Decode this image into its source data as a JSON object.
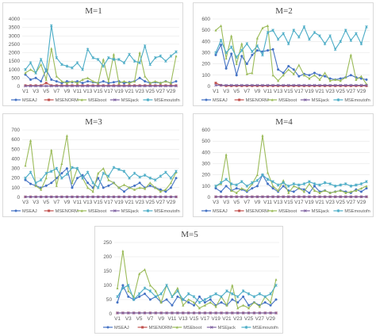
{
  "series_styles": [
    {
      "name": "MSEAJ",
      "color": "#4472c4",
      "marker": "circle"
    },
    {
      "name": "MSENORM",
      "color": "#c0504d",
      "marker": "square"
    },
    {
      "name": "MSEboot",
      "color": "#9bbb59",
      "marker": "triangle"
    },
    {
      "name": "MSEjack",
      "color": "#8064a2",
      "marker": "x"
    },
    {
      "name": "MSEmoutofn",
      "color": "#4bacc6",
      "marker": "star"
    }
  ],
  "chart_data": [
    {
      "type": "line",
      "title": "M=1",
      "ylim": [
        0,
        4000
      ],
      "yticks": [
        0,
        500,
        1000,
        1500,
        2000,
        2500,
        3000,
        3500,
        4000
      ],
      "x_tick_labels": [
        "V1",
        "V3",
        "V5",
        "V7",
        "V9",
        "V11",
        "V13",
        "V15",
        "V17",
        "V19",
        "V21",
        "V23",
        "V25",
        "V27",
        "V29"
      ],
      "series": [
        {
          "name": "MSEAJ",
          "values": [
            700,
            400,
            500,
            300,
            1000,
            400,
            300,
            200,
            300,
            250,
            300,
            200,
            300,
            250,
            200,
            300,
            200,
            250,
            300,
            200,
            250,
            300,
            500,
            300,
            200,
            250,
            200,
            300,
            200,
            300
          ]
        },
        {
          "name": "MSENORM",
          "values": [
            50,
            50,
            50,
            50,
            200,
            50,
            50,
            50,
            50,
            50,
            50,
            50,
            50,
            50,
            50,
            50,
            50,
            50,
            50,
            50,
            50,
            50,
            50,
            50,
            50,
            50,
            50,
            50,
            50,
            50
          ]
        },
        {
          "name": "MSEboot",
          "values": [
            800,
            1000,
            800,
            1300,
            400,
            2250,
            600,
            300,
            200,
            300,
            200,
            400,
            500,
            300,
            200,
            1600,
            300,
            1900,
            200,
            300,
            200,
            300,
            2000,
            600,
            200,
            300,
            200,
            300,
            200,
            1800
          ]
        },
        {
          "name": "MSEjack",
          "values": [
            20,
            20,
            20,
            20,
            20,
            20,
            20,
            20,
            20,
            20,
            20,
            20,
            20,
            20,
            20,
            20,
            20,
            20,
            20,
            20,
            20,
            20,
            20,
            20,
            20,
            20,
            20,
            20,
            20,
            20
          ]
        },
        {
          "name": "MSEmoutofn",
          "values": [
            1000,
            1400,
            800,
            1600,
            900,
            3600,
            1700,
            1300,
            1200,
            1100,
            1400,
            1000,
            2200,
            1700,
            1600,
            1200,
            1700,
            1600,
            1600,
            1400,
            1900,
            1500,
            1400,
            2400,
            1300,
            1700,
            1800,
            1500,
            1800,
            2050
          ]
        }
      ],
      "legend": "bottom"
    },
    {
      "type": "line",
      "title": "M=2",
      "ylim": [
        0,
        600
      ],
      "yticks": [
        0,
        100,
        200,
        300,
        400,
        500,
        600
      ],
      "x_tick_labels": [
        "V1",
        "V3",
        "V5",
        "V7",
        "V9",
        "V11",
        "V13",
        "V15",
        "V17",
        "V19",
        "V21",
        "V23",
        "V25",
        "V27",
        "V29"
      ],
      "series": [
        {
          "name": "MSEAJ",
          "values": [
            280,
            370,
            160,
            290,
            100,
            270,
            200,
            280,
            320,
            310,
            320,
            330,
            150,
            120,
            180,
            150,
            90,
            110,
            100,
            120,
            100,
            90,
            70,
            60,
            70,
            80,
            100,
            80,
            70,
            60
          ]
        },
        {
          "name": "MSENORM",
          "values": [
            30,
            10,
            5,
            5,
            5,
            5,
            5,
            5,
            5,
            5,
            5,
            5,
            5,
            5,
            5,
            5,
            5,
            5,
            5,
            5,
            5,
            5,
            5,
            5,
            5,
            5,
            5,
            5,
            5,
            5
          ]
        },
        {
          "name": "MSEboot",
          "values": [
            500,
            540,
            250,
            450,
            200,
            380,
            110,
            120,
            430,
            520,
            540,
            100,
            50,
            100,
            150,
            110,
            190,
            100,
            70,
            100,
            60,
            120,
            50,
            60,
            50,
            80,
            280,
            60,
            90,
            20
          ]
        },
        {
          "name": "MSEjack",
          "values": [
            10,
            10,
            10,
            10,
            10,
            10,
            10,
            10,
            10,
            10,
            10,
            10,
            10,
            10,
            10,
            10,
            10,
            10,
            10,
            10,
            10,
            10,
            10,
            10,
            10,
            10,
            10,
            10,
            10,
            10
          ]
        },
        {
          "name": "MSEmoutofn",
          "values": [
            300,
            410,
            300,
            350,
            260,
            320,
            380,
            310,
            360,
            280,
            480,
            500,
            420,
            470,
            380,
            500,
            440,
            530,
            420,
            480,
            450,
            380,
            450,
            330,
            400,
            500,
            410,
            470,
            380,
            530
          ]
        }
      ],
      "legend": "bottom"
    },
    {
      "type": "line",
      "title": "M=3",
      "ylim": [
        0,
        700
      ],
      "yticks": [
        0,
        100,
        200,
        300,
        400,
        500,
        600,
        700
      ],
      "x_tick_labels": [
        "V3",
        "V3",
        "V5",
        "V7",
        "V9",
        "V11",
        "V13",
        "V15",
        "V17",
        "V19",
        "V21",
        "V23",
        "V25",
        "V27",
        "V29"
      ],
      "series": [
        {
          "name": "MSEAJ",
          "values": [
            180,
            140,
            120,
            100,
            120,
            150,
            200,
            250,
            300,
            100,
            200,
            230,
            150,
            100,
            200,
            100,
            120,
            150,
            100,
            60,
            100,
            120,
            150,
            100,
            120,
            100,
            80,
            60,
            100,
            200
          ]
        },
        {
          "name": "MSENORM",
          "values": [
            5,
            5,
            5,
            5,
            5,
            5,
            5,
            5,
            5,
            5,
            5,
            5,
            5,
            5,
            5,
            5,
            5,
            5,
            5,
            5,
            5,
            5,
            5,
            5,
            5,
            5,
            5,
            5,
            5,
            5
          ]
        },
        {
          "name": "MSEboot",
          "values": [
            330,
            590,
            120,
            80,
            200,
            490,
            120,
            350,
            640,
            150,
            300,
            200,
            100,
            60,
            250,
            300,
            180,
            150,
            100,
            130,
            100,
            80,
            100,
            90,
            150,
            100,
            60,
            80,
            150,
            260
          ]
        },
        {
          "name": "MSEjack",
          "values": [
            5,
            5,
            5,
            5,
            5,
            5,
            5,
            5,
            5,
            5,
            5,
            5,
            5,
            5,
            5,
            5,
            5,
            5,
            5,
            5,
            5,
            5,
            5,
            5,
            5,
            5,
            5,
            5,
            5,
            5
          ]
        },
        {
          "name": "MSEmoutofn",
          "values": [
            200,
            260,
            150,
            180,
            250,
            270,
            300,
            200,
            240,
            310,
            300,
            200,
            260,
            150,
            100,
            250,
            220,
            310,
            290,
            270,
            200,
            250,
            210,
            230,
            200,
            180,
            220,
            260,
            200,
            270
          ]
        }
      ],
      "legend": "bottom"
    },
    {
      "type": "line",
      "title": "M=4",
      "ylim": [
        0,
        600
      ],
      "yticks": [
        0,
        100,
        200,
        300,
        400,
        500,
        600
      ],
      "x_tick_labels": [
        "V3",
        "V3",
        "V5",
        "V7",
        "V9",
        "V11",
        "V13",
        "V15",
        "V17",
        "V19",
        "V21",
        "V23",
        "V25",
        "V27",
        "V29"
      ],
      "series": [
        {
          "name": "MSEAJ",
          "values": [
            80,
            50,
            100,
            60,
            80,
            70,
            50,
            80,
            100,
            200,
            120,
            80,
            50,
            100,
            60,
            50,
            80,
            70,
            40,
            100,
            50,
            60,
            40,
            50,
            60,
            50,
            40,
            70,
            50,
            80
          ]
        },
        {
          "name": "MSENORM",
          "values": [
            5,
            5,
            5,
            5,
            5,
            5,
            5,
            5,
            5,
            5,
            5,
            5,
            5,
            5,
            5,
            5,
            5,
            5,
            5,
            5,
            5,
            5,
            5,
            5,
            5,
            5,
            5,
            5,
            5,
            5
          ]
        },
        {
          "name": "MSEboot",
          "values": [
            100,
            120,
            380,
            60,
            40,
            80,
            60,
            120,
            200,
            550,
            220,
            100,
            60,
            150,
            40,
            100,
            80,
            50,
            120,
            60,
            40,
            60,
            40,
            50,
            60,
            40,
            50,
            60,
            80,
            100
          ]
        },
        {
          "name": "MSEjack",
          "values": [
            5,
            5,
            5,
            5,
            5,
            5,
            5,
            5,
            5,
            5,
            5,
            5,
            5,
            5,
            5,
            5,
            5,
            5,
            5,
            5,
            5,
            5,
            5,
            5,
            5,
            5,
            5,
            5,
            5,
            5
          ]
        },
        {
          "name": "MSEmoutofn",
          "values": [
            100,
            130,
            160,
            120,
            110,
            140,
            100,
            130,
            150,
            200,
            160,
            140,
            110,
            130,
            100,
            120,
            110,
            120,
            140,
            120,
            110,
            130,
            120,
            100,
            110,
            120,
            100,
            110,
            120,
            140
          ]
        }
      ],
      "legend": "bottom"
    },
    {
      "type": "line",
      "title": "M=5",
      "ylim": [
        0,
        250
      ],
      "yticks": [
        0,
        50,
        100,
        150,
        200,
        250
      ],
      "x_tick_labels": [
        "V1",
        "V3",
        "V5",
        "V7",
        "V9",
        "V11",
        "V13",
        "V15",
        "V17",
        "V19",
        "V21",
        "V23",
        "V25",
        "V27",
        "V29"
      ],
      "series": [
        {
          "name": "MSEAJ",
          "values": [
            40,
            100,
            60,
            50,
            60,
            70,
            50,
            60,
            40,
            50,
            30,
            60,
            50,
            40,
            30,
            60,
            40,
            50,
            30,
            40,
            30,
            50,
            40,
            60,
            30,
            40,
            30,
            40,
            30,
            50
          ]
        },
        {
          "name": "MSENORM",
          "values": [
            3,
            3,
            3,
            3,
            3,
            3,
            3,
            3,
            3,
            3,
            3,
            3,
            3,
            3,
            3,
            3,
            3,
            3,
            3,
            3,
            3,
            3,
            3,
            3,
            3,
            3,
            3,
            3,
            3,
            3
          ]
        },
        {
          "name": "MSEboot",
          "values": [
            90,
            220,
            80,
            60,
            140,
            155,
            100,
            80,
            40,
            100,
            60,
            90,
            30,
            50,
            40,
            20,
            30,
            40,
            25,
            60,
            30,
            100,
            20,
            30,
            20,
            40,
            25,
            60,
            40,
            120
          ]
        },
        {
          "name": "MSEjack",
          "values": [
            3,
            3,
            3,
            3,
            3,
            3,
            3,
            3,
            3,
            3,
            3,
            3,
            3,
            3,
            3,
            3,
            3,
            3,
            3,
            3,
            3,
            3,
            3,
            3,
            3,
            3,
            3,
            3,
            3,
            3
          ]
        },
        {
          "name": "MSEmoutofn",
          "values": [
            60,
            90,
            100,
            50,
            70,
            90,
            80,
            60,
            70,
            100,
            60,
            80,
            50,
            70,
            60,
            40,
            50,
            60,
            70,
            60,
            80,
            70,
            60,
            80,
            70,
            60,
            70,
            60,
            70,
            100
          ]
        }
      ],
      "legend": "bottom"
    }
  ]
}
